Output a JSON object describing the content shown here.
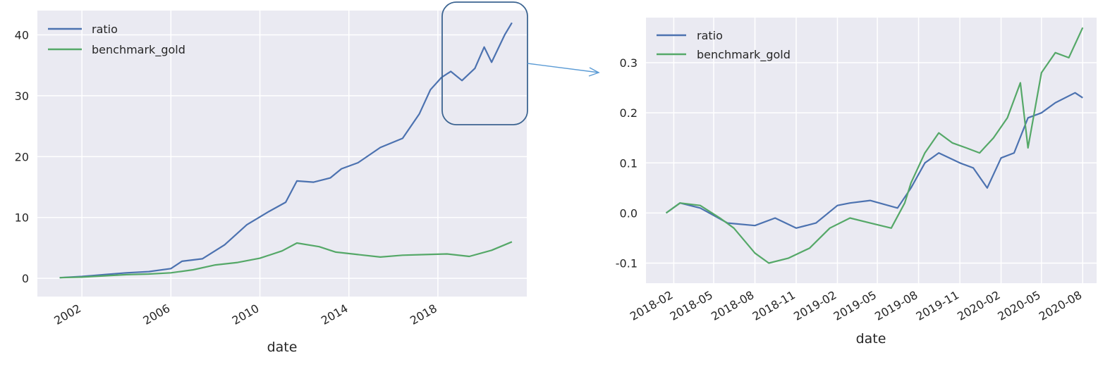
{
  "chart_data": [
    {
      "type": "line",
      "title": "",
      "xlabel": "date",
      "ylabel": "",
      "x_ticks": [
        "2002",
        "2006",
        "2010",
        "2014",
        "2018"
      ],
      "y_ticks": [
        "0",
        "10",
        "20",
        "30",
        "40"
      ],
      "xlim": [
        "2000-01-01",
        "2021-12-31"
      ],
      "ylim": [
        -3,
        44
      ],
      "grid": true,
      "legend_position": "top-left",
      "series": [
        {
          "name": "ratio",
          "color": "#4C72B0",
          "points": [
            [
              "2001-01-01",
              0.1
            ],
            [
              "2002-01-01",
              0.3
            ],
            [
              "2003-01-01",
              0.6
            ],
            [
              "2004-01-01",
              0.9
            ],
            [
              "2005-01-01",
              1.1
            ],
            [
              "2006-01-01",
              1.6
            ],
            [
              "2006-07-01",
              2.8
            ],
            [
              "2007-06-01",
              3.2
            ],
            [
              "2008-06-01",
              5.5
            ],
            [
              "2009-06-01",
              8.8
            ],
            [
              "2010-06-01",
              11.0
            ],
            [
              "2011-03-01",
              12.5
            ],
            [
              "2011-09-01",
              16.0
            ],
            [
              "2012-06-01",
              15.8
            ],
            [
              "2013-03-01",
              16.5
            ],
            [
              "2013-09-01",
              18.0
            ],
            [
              "2014-06-01",
              19.0
            ],
            [
              "2015-06-01",
              21.5
            ],
            [
              "2016-06-01",
              23.0
            ],
            [
              "2017-03-01",
              27.0
            ],
            [
              "2017-09-01",
              31.0
            ],
            [
              "2018-03-01",
              33.0
            ],
            [
              "2018-08-01",
              34.0
            ],
            [
              "2019-02-01",
              32.5
            ],
            [
              "2019-09-01",
              34.5
            ],
            [
              "2020-02-01",
              38.0
            ],
            [
              "2020-06-01",
              35.5
            ],
            [
              "2021-01-01",
              40.0
            ],
            [
              "2021-05-01",
              42.0
            ]
          ]
        },
        {
          "name": "benchmark_gold",
          "color": "#55A868",
          "points": [
            [
              "2001-01-01",
              0.1
            ],
            [
              "2002-01-01",
              0.2
            ],
            [
              "2003-01-01",
              0.4
            ],
            [
              "2004-01-01",
              0.6
            ],
            [
              "2005-01-01",
              0.7
            ],
            [
              "2006-01-01",
              0.9
            ],
            [
              "2007-01-01",
              1.4
            ],
            [
              "2008-01-01",
              2.2
            ],
            [
              "2009-01-01",
              2.6
            ],
            [
              "2010-01-01",
              3.3
            ],
            [
              "2011-01-01",
              4.5
            ],
            [
              "2011-09-01",
              5.8
            ],
            [
              "2012-09-01",
              5.2
            ],
            [
              "2013-06-01",
              4.3
            ],
            [
              "2014-06-01",
              3.9
            ],
            [
              "2015-06-01",
              3.5
            ],
            [
              "2016-06-01",
              3.8
            ],
            [
              "2017-06-01",
              3.9
            ],
            [
              "2018-06-01",
              4.0
            ],
            [
              "2019-06-01",
              3.6
            ],
            [
              "2020-06-01",
              4.6
            ],
            [
              "2021-05-01",
              6.0
            ]
          ]
        }
      ]
    },
    {
      "type": "line",
      "title": "",
      "xlabel": "date",
      "ylabel": "",
      "x_ticks": [
        "2018-02",
        "2018-05",
        "2018-08",
        "2018-11",
        "2019-02",
        "2019-05",
        "2019-08",
        "2019-11",
        "2020-02",
        "2020-05",
        "2020-08"
      ],
      "y_ticks": [
        "-0.1",
        "0.0",
        "0.1",
        "0.2",
        "0.3"
      ],
      "xlim": [
        "2017-12-01",
        "2020-09-01"
      ],
      "ylim": [
        -0.14,
        0.39
      ],
      "grid": true,
      "legend_position": "top-left",
      "series": [
        {
          "name": "ratio",
          "color": "#4C72B0",
          "points": [
            [
              "2018-01-15",
              0.0
            ],
            [
              "2018-02-15",
              0.02
            ],
            [
              "2018-04-01",
              0.01
            ],
            [
              "2018-06-01",
              -0.02
            ],
            [
              "2018-08-01",
              -0.025
            ],
            [
              "2018-09-15",
              -0.01
            ],
            [
              "2018-11-01",
              -0.03
            ],
            [
              "2018-12-15",
              -0.02
            ],
            [
              "2019-02-01",
              0.015
            ],
            [
              "2019-03-01",
              0.02
            ],
            [
              "2019-04-15",
              0.025
            ],
            [
              "2019-06-15",
              0.01
            ],
            [
              "2019-07-15",
              0.05
            ],
            [
              "2019-08-15",
              0.1
            ],
            [
              "2019-09-15",
              0.12
            ],
            [
              "2019-11-01",
              0.1
            ],
            [
              "2019-12-01",
              0.09
            ],
            [
              "2020-01-01",
              0.05
            ],
            [
              "2020-02-01",
              0.11
            ],
            [
              "2020-03-01",
              0.12
            ],
            [
              "2020-04-01",
              0.19
            ],
            [
              "2020-05-01",
              0.2
            ],
            [
              "2020-06-01",
              0.22
            ],
            [
              "2020-07-15",
              0.24
            ],
            [
              "2020-08-01",
              0.23
            ]
          ]
        },
        {
          "name": "benchmark_gold",
          "color": "#55A868",
          "points": [
            [
              "2018-01-15",
              0.0
            ],
            [
              "2018-02-15",
              0.02
            ],
            [
              "2018-04-01",
              0.015
            ],
            [
              "2018-05-15",
              -0.01
            ],
            [
              "2018-06-15",
              -0.03
            ],
            [
              "2018-08-01",
              -0.08
            ],
            [
              "2018-09-01",
              -0.1
            ],
            [
              "2018-10-15",
              -0.09
            ],
            [
              "2018-12-01",
              -0.07
            ],
            [
              "2019-01-15",
              -0.03
            ],
            [
              "2019-03-01",
              -0.01
            ],
            [
              "2019-04-15",
              -0.02
            ],
            [
              "2019-06-01",
              -0.03
            ],
            [
              "2019-07-01",
              0.02
            ],
            [
              "2019-07-15",
              0.06
            ],
            [
              "2019-08-15",
              0.12
            ],
            [
              "2019-09-15",
              0.16
            ],
            [
              "2019-10-15",
              0.14
            ],
            [
              "2019-11-15",
              0.13
            ],
            [
              "2019-12-15",
              0.12
            ],
            [
              "2020-01-15",
              0.15
            ],
            [
              "2020-02-15",
              0.19
            ],
            [
              "2020-03-15",
              0.26
            ],
            [
              "2020-04-01",
              0.13
            ],
            [
              "2020-05-01",
              0.28
            ],
            [
              "2020-06-01",
              0.32
            ],
            [
              "2020-07-01",
              0.31
            ],
            [
              "2020-08-01",
              0.37
            ]
          ]
        }
      ]
    }
  ],
  "callout_color": "#3C6491",
  "arrow_color": "#5B9BD5"
}
